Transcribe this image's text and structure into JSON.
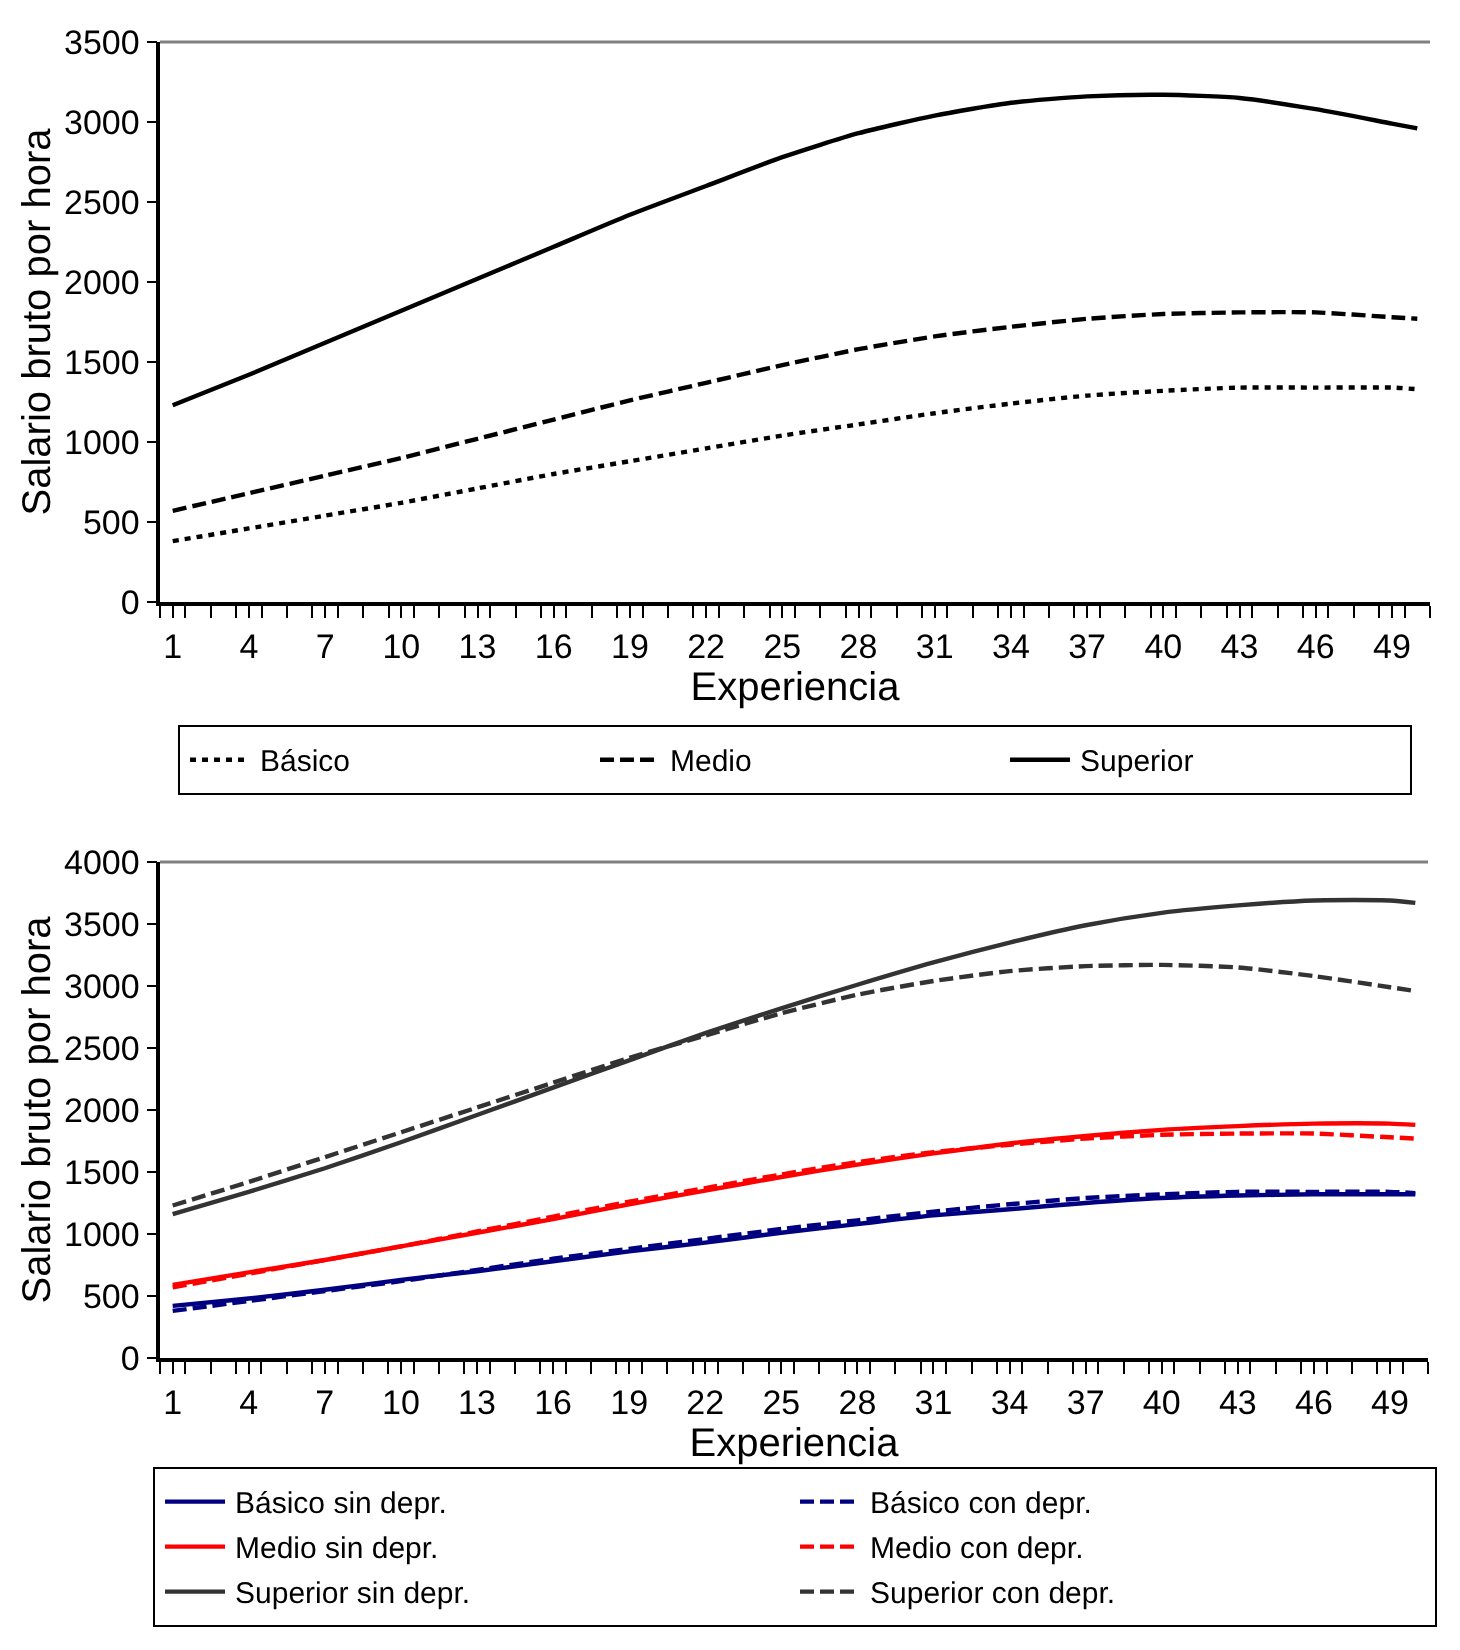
{
  "chart_data": [
    {
      "type": "line",
      "xlabel": "Experiencia",
      "ylabel": "Salario bruto por hora",
      "xlim": [
        0.5,
        50.5
      ],
      "xticks": [
        1,
        4,
        7,
        10,
        13,
        16,
        19,
        22,
        25,
        28,
        31,
        34,
        37,
        40,
        43,
        46,
        49
      ],
      "ylim": [
        0,
        3500
      ],
      "yticks": [
        0,
        500,
        1000,
        1500,
        2000,
        2500,
        3000,
        3500
      ],
      "legend": "bottom",
      "x": [
        1,
        4,
        7,
        10,
        13,
        16,
        19,
        22,
        25,
        28,
        31,
        34,
        37,
        40,
        43,
        46,
        49,
        50
      ],
      "series": [
        {
          "name": "Básico",
          "color": "#000000",
          "line_style": "dotted",
          "values": [
            380,
            460,
            540,
            620,
            710,
            800,
            880,
            960,
            1040,
            1110,
            1180,
            1240,
            1290,
            1320,
            1340,
            1340,
            1340,
            1330
          ]
        },
        {
          "name": "Medio",
          "color": "#000000",
          "line_style": "dashed",
          "values": [
            570,
            680,
            790,
            900,
            1020,
            1140,
            1260,
            1370,
            1480,
            1580,
            1660,
            1720,
            1770,
            1800,
            1810,
            1810,
            1780,
            1770
          ]
        },
        {
          "name": "Superior",
          "color": "#000000",
          "line_style": "solid",
          "values": [
            1230,
            1420,
            1620,
            1820,
            2020,
            2220,
            2420,
            2600,
            2780,
            2930,
            3040,
            3120,
            3160,
            3170,
            3150,
            3080,
            2990,
            2960
          ]
        }
      ]
    },
    {
      "type": "line",
      "xlabel": "Experiencia",
      "ylabel": "Salario bruto por hora",
      "xlim": [
        0.5,
        50.5
      ],
      "xticks": [
        1,
        4,
        7,
        10,
        13,
        16,
        19,
        22,
        25,
        28,
        31,
        34,
        37,
        40,
        43,
        46,
        49
      ],
      "ylim": [
        0,
        4000
      ],
      "yticks": [
        0,
        500,
        1000,
        1500,
        2000,
        2500,
        3000,
        3500,
        4000
      ],
      "legend": "bottom",
      "x": [
        1,
        4,
        7,
        10,
        13,
        16,
        19,
        22,
        25,
        28,
        31,
        34,
        37,
        40,
        43,
        46,
        49,
        50
      ],
      "series": [
        {
          "name": "Básico sin depr.",
          "color": "#000080",
          "line_style": "solid",
          "values": [
            420,
            480,
            550,
            630,
            700,
            780,
            860,
            930,
            1010,
            1080,
            1150,
            1200,
            1250,
            1290,
            1310,
            1320,
            1320,
            1320
          ]
        },
        {
          "name": "Básico con depr.",
          "color": "#000080",
          "line_style": "dashed",
          "values": [
            380,
            460,
            540,
            620,
            710,
            800,
            880,
            960,
            1040,
            1110,
            1180,
            1240,
            1290,
            1320,
            1340,
            1340,
            1340,
            1330
          ]
        },
        {
          "name": "Medio sin depr.",
          "color": "#ff0000",
          "line_style": "solid",
          "values": [
            590,
            690,
            790,
            900,
            1010,
            1120,
            1240,
            1350,
            1460,
            1560,
            1650,
            1730,
            1790,
            1840,
            1870,
            1890,
            1890,
            1880
          ]
        },
        {
          "name": "Medio con depr.",
          "color": "#ff0000",
          "line_style": "dashed",
          "values": [
            570,
            680,
            790,
            900,
            1020,
            1140,
            1260,
            1370,
            1480,
            1580,
            1660,
            1720,
            1770,
            1800,
            1810,
            1810,
            1780,
            1770
          ]
        },
        {
          "name": "Superior sin depr.",
          "color": "#333333",
          "line_style": "solid",
          "values": [
            1160,
            1340,
            1530,
            1740,
            1960,
            2180,
            2400,
            2620,
            2820,
            3010,
            3190,
            3350,
            3490,
            3590,
            3650,
            3690,
            3690,
            3670
          ]
        },
        {
          "name": "Superior con depr.",
          "color": "#333333",
          "line_style": "dashed",
          "values": [
            1230,
            1420,
            1620,
            1820,
            2020,
            2220,
            2420,
            2600,
            2780,
            2930,
            3040,
            3120,
            3160,
            3170,
            3150,
            3080,
            2990,
            2960
          ]
        }
      ]
    }
  ]
}
